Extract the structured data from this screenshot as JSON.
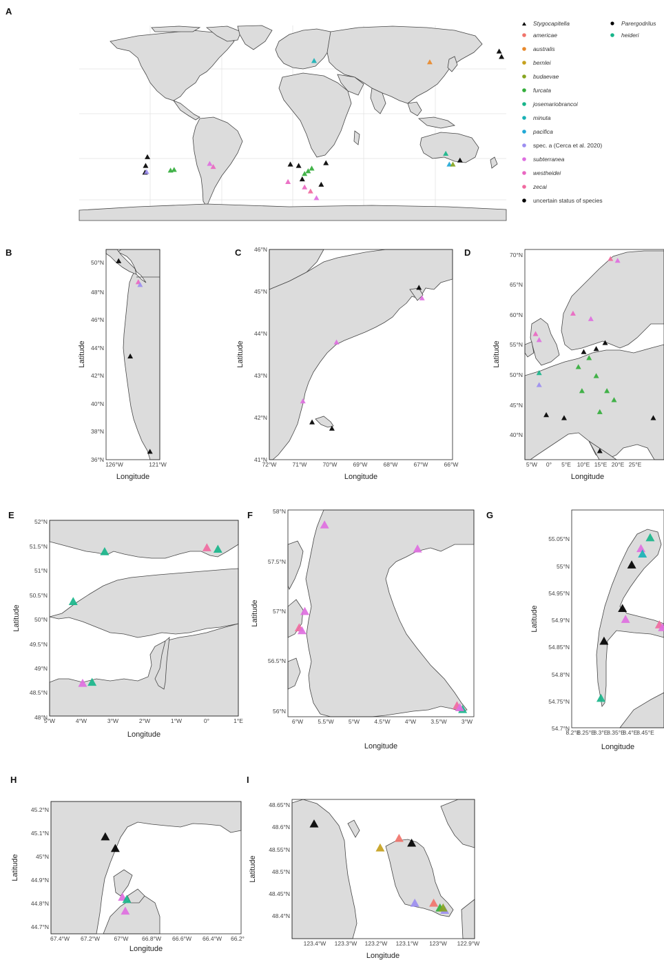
{
  "colors": {
    "americae": "#f0746b",
    "australis": "#e8892b",
    "bernlei": "#c6a11e",
    "budaevae": "#86a41f",
    "furcata": "#33ad3b",
    "josemariobrancoi": "#18b58a",
    "minuta": "#19b1b5",
    "pacifica": "#21a8d6",
    "spec_a": "#9c8ef0",
    "subterranea": "#de6fe0",
    "westheidei": "#e967c1",
    "zecai": "#f06aa0",
    "uncertain": "#000000"
  },
  "legend": {
    "stygocapitella_header": "Stygocapitella",
    "parergodrilus_header": "Parergodrilus",
    "items": [
      {
        "label": "americae",
        "color_key": "americae"
      },
      {
        "label": "australis",
        "color_key": "australis"
      },
      {
        "label": "bernlei",
        "color_key": "bernlei"
      },
      {
        "label": "budaevae",
        "color_key": "budaevae"
      },
      {
        "label": "furcata",
        "color_key": "furcata"
      },
      {
        "label": "josemariobrancoi",
        "color_key": "josemariobrancoi"
      },
      {
        "label": "minuta",
        "color_key": "minuta"
      },
      {
        "label": "pacifica",
        "color_key": "pacifica"
      },
      {
        "label": "spec. a (Cerca et al. 2020)",
        "color_key": "spec_a"
      },
      {
        "label": "subterranea",
        "color_key": "subterranea"
      },
      {
        "label": "westheidei",
        "color_key": "westheidei"
      },
      {
        "label": "zecai",
        "color_key": "zecai"
      },
      {
        "label": "uncertain status of species",
        "color_key": "uncertain"
      }
    ],
    "parergodrilus_items": [
      {
        "label": "heideri",
        "color_key": "josemariobrancoi"
      }
    ]
  },
  "panels": {
    "A": {
      "letter": "A"
    },
    "B": {
      "letter": "B",
      "xlabel": "Longitude",
      "ylabel": "Latitude",
      "xticks": [
        "126°W",
        "121°W"
      ],
      "yticks": [
        "50°N",
        "48°N",
        "46°N",
        "44°N",
        "42°N",
        "40°N",
        "38°N",
        "36°N"
      ]
    },
    "C": {
      "letter": "C",
      "xlabel": "Longitude",
      "ylabel": "Latitude",
      "xticks": [
        "72°W",
        "71°W",
        "70°W",
        "69°W",
        "68°W",
        "67°W",
        "66°W"
      ],
      "yticks": [
        "46°N",
        "45°N",
        "44°N",
        "43°N",
        "42°N",
        "41°N"
      ]
    },
    "D": {
      "letter": "D",
      "xlabel": "Longitude",
      "ylabel": "Latitude",
      "xticks": [
        "5°W",
        "0°",
        "5°E",
        "10°E",
        "15°E",
        "20°E",
        "25°E"
      ],
      "yticks": [
        "70°N",
        "65°N",
        "60°N",
        "55°N",
        "50°N",
        "45°N",
        "40°N"
      ]
    },
    "E": {
      "letter": "E",
      "xlabel": "Longitude",
      "ylabel": "Latitude",
      "xticks": [
        "5°W",
        "4°W",
        "3°W",
        "2°W",
        "1°W",
        "0°",
        "1°E"
      ],
      "yticks": [
        "52°N",
        "51.5°N",
        "51°N",
        "50.5°N",
        "50°N",
        "49.5°N",
        "49°N",
        "48.5°N",
        "48°N"
      ]
    },
    "F": {
      "letter": "F",
      "xlabel": "Longitude",
      "ylabel": "Latitude",
      "xticks": [
        "6°W",
        "5.5°W",
        "5°W",
        "4.5°W",
        "4°W",
        "3.5°W",
        "3°W"
      ],
      "yticks": [
        "58°N",
        "57.5°N",
        "57°N",
        "56.5°N",
        "56°N"
      ]
    },
    "G": {
      "letter": "G",
      "xlabel": "Longitude",
      "ylabel": "Latitude",
      "xticks": [
        "8.2°E",
        "8.25°E",
        "8.3°E",
        "8.35°E",
        "8.4°E",
        "8.45°E"
      ],
      "yticks": [
        "55.05°N",
        "55°N",
        "54.95°N",
        "54.9°N",
        "54.85°N",
        "54.8°N",
        "54.75°N",
        "54.7°N"
      ]
    },
    "H": {
      "letter": "H",
      "xlabel": "Longitude",
      "ylabel": "Latitude",
      "xticks": [
        "67.4°W",
        "67.2°W",
        "67°W",
        "66.8°W",
        "66.6°W",
        "66.4°W",
        "66.2°"
      ],
      "yticks": [
        "45.2°N",
        "45.1°N",
        "45°N",
        "44.9°N",
        "44.8°N",
        "44.7°N"
      ]
    },
    "I": {
      "letter": "I",
      "xlabel": "Longitude",
      "ylabel": "Latitude",
      "xticks": [
        "123.4°W",
        "123.3°W",
        "123.2°W",
        "123.1°W",
        "123°W",
        "122.9°W"
      ],
      "yticks": [
        "48.65°N",
        "48.6°N",
        "48.55°N",
        "48.5°N",
        "48.45°N",
        "48.4°N"
      ]
    }
  },
  "markers": {
    "A": [
      {
        "lon": -124.5,
        "lat": 49.0,
        "sp": "uncertain"
      },
      {
        "lon": -123.2,
        "lat": 48.6,
        "sp": "spec_a"
      },
      {
        "lon": -124.0,
        "lat": 44.0,
        "sp": "uncertain"
      },
      {
        "lon": -122.5,
        "lat": 37.5,
        "sp": "uncertain"
      },
      {
        "lon": -103,
        "lat": 47.5,
        "sp": "furcata"
      },
      {
        "lon": -100,
        "lat": 47,
        "sp": "furcata"
      },
      {
        "lon": -70,
        "lat": 42.5,
        "sp": "subterranea"
      },
      {
        "lon": -67,
        "lat": 44.8,
        "sp": "westheidei"
      },
      {
        "lon": -4,
        "lat": 56,
        "sp": "westheidei"
      },
      {
        "lon": 8,
        "lat": 54,
        "sp": "uncertain"
      },
      {
        "lon": 10,
        "lat": 60,
        "sp": "westheidei"
      },
      {
        "lon": 15,
        "lat": 63,
        "sp": "zecai"
      },
      {
        "lon": 20,
        "lat": 68,
        "sp": "subterranea"
      },
      {
        "lon": 13,
        "lat": 48,
        "sp": "furcata"
      },
      {
        "lon": 16,
        "lat": 46,
        "sp": "furcata"
      },
      {
        "lon": 5,
        "lat": 44,
        "sp": "uncertain"
      },
      {
        "lon": 10,
        "lat": 50,
        "sp": "furcata"
      },
      {
        "lon": -2,
        "lat": 43,
        "sp": "uncertain"
      },
      {
        "lon": 28,
        "lat": 42,
        "sp": "uncertain"
      },
      {
        "lon": 24,
        "lat": 58,
        "sp": "uncertain"
      },
      {
        "lon": 18,
        "lat": -34,
        "sp": "minuta"
      },
      {
        "lon": 115.5,
        "lat": -33,
        "sp": "australis"
      },
      {
        "lon": 132,
        "lat": 43,
        "sp": "pacifica"
      },
      {
        "lon": 135,
        "lat": 43,
        "sp": "budaevae"
      },
      {
        "lon": 141,
        "lat": 40,
        "sp": "uncertain"
      },
      {
        "lon": 129,
        "lat": 35,
        "sp": "josemariobrancoi"
      },
      {
        "lon": 174,
        "lat": -41,
        "sp": "uncertain"
      },
      {
        "lon": 176,
        "lat": -37,
        "sp": "uncertain"
      }
    ],
    "B": [
      {
        "lon": -125.4,
        "lat": 50.2,
        "sp": "uncertain"
      },
      {
        "lon": -123.2,
        "lat": 48.7,
        "sp": "westheidei"
      },
      {
        "lon": -123.0,
        "lat": 48.5,
        "sp": "spec_a"
      },
      {
        "lon": -124.1,
        "lat": 43.4,
        "sp": "uncertain"
      },
      {
        "lon": -121.9,
        "lat": 36.6,
        "sp": "uncertain"
      }
    ],
    "C": [
      {
        "lon": -67.1,
        "lat": 45.1,
        "sp": "uncertain"
      },
      {
        "lon": -67.0,
        "lat": 44.85,
        "sp": "subterranea"
      },
      {
        "lon": -69.8,
        "lat": 43.8,
        "sp": "subterranea"
      },
      {
        "lon": -70.9,
        "lat": 42.4,
        "sp": "subterranea"
      },
      {
        "lon": -70.6,
        "lat": 41.9,
        "sp": "uncertain"
      },
      {
        "lon": -69.95,
        "lat": 41.75,
        "sp": "uncertain"
      }
    ],
    "D": [
      {
        "lon": 16,
        "lat": 69.5,
        "sp": "zecai"
      },
      {
        "lon": 18,
        "lat": 69.2,
        "sp": "subterranea"
      },
      {
        "lon": 5.5,
        "lat": 60.4,
        "sp": "westheidei"
      },
      {
        "lon": 10.5,
        "lat": 59.5,
        "sp": "subterranea"
      },
      {
        "lon": -5,
        "lat": 57,
        "sp": "westheidei"
      },
      {
        "lon": -4,
        "lat": 56,
        "sp": "subterranea"
      },
      {
        "lon": 8.5,
        "lat": 54,
        "sp": "uncertain"
      },
      {
        "lon": 12,
        "lat": 54.5,
        "sp": "uncertain"
      },
      {
        "lon": 14.5,
        "lat": 55.5,
        "sp": "uncertain"
      },
      {
        "lon": -4,
        "lat": 50.5,
        "sp": "josemariobrancoi"
      },
      {
        "lon": -4,
        "lat": 48.5,
        "sp": "spec_a"
      },
      {
        "lon": 10,
        "lat": 53,
        "sp": "furcata"
      },
      {
        "lon": 12,
        "lat": 50,
        "sp": "furcata"
      },
      {
        "lon": 15,
        "lat": 47.5,
        "sp": "furcata"
      },
      {
        "lon": 17,
        "lat": 46,
        "sp": "furcata"
      },
      {
        "lon": 13,
        "lat": 44,
        "sp": "furcata"
      },
      {
        "lon": 8,
        "lat": 47.5,
        "sp": "furcata"
      },
      {
        "lon": -2,
        "lat": 43.5,
        "sp": "uncertain"
      },
      {
        "lon": 3,
        "lat": 43,
        "sp": "uncertain"
      },
      {
        "lon": 28,
        "lat": 43,
        "sp": "uncertain"
      },
      {
        "lon": 13,
        "lat": 37.5,
        "sp": "uncertain"
      },
      {
        "lon": 7,
        "lat": 51.5,
        "sp": "furcata"
      }
    ],
    "E": [
      {
        "lon": -3.25,
        "lat": 51.37,
        "sp": "josemariobrancoi"
      },
      {
        "lon": 0.0,
        "lat": 51.45,
        "sp": "zecai"
      },
      {
        "lon": 0.35,
        "lat": 51.42,
        "sp": "josemariobrancoi"
      },
      {
        "lon": -4.25,
        "lat": 50.35,
        "sp": "josemariobrancoi"
      },
      {
        "lon": -3.95,
        "lat": 48.68,
        "sp": "subterranea"
      },
      {
        "lon": -3.65,
        "lat": 48.7,
        "sp": "josemariobrancoi"
      }
    ],
    "F": [
      {
        "lon": -5.5,
        "lat": 57.85,
        "sp": "subterranea"
      },
      {
        "lon": -3.85,
        "lat": 57.6,
        "sp": "subterranea"
      },
      {
        "lon": -5.85,
        "lat": 56.95,
        "sp": "subterranea"
      },
      {
        "lon": -5.95,
        "lat": 56.78,
        "sp": "zecai"
      },
      {
        "lon": -5.9,
        "lat": 56.75,
        "sp": "subterranea"
      },
      {
        "lon": -3.15,
        "lat": 55.97,
        "sp": "zecai"
      },
      {
        "lon": -3.05,
        "lat": 55.93,
        "sp": "josemariobrancoi"
      },
      {
        "lon": -3.1,
        "lat": 55.95,
        "sp": "subterranea"
      }
    ],
    "G": [
      {
        "lon": 8.455,
        "lat": 55.05,
        "sp": "josemariobrancoi"
      },
      {
        "lon": 8.425,
        "lat": 55.03,
        "sp": "subterranea"
      },
      {
        "lon": 8.43,
        "lat": 55.02,
        "sp": "minuta"
      },
      {
        "lon": 8.395,
        "lat": 55.0,
        "sp": "uncertain"
      },
      {
        "lon": 8.365,
        "lat": 54.92,
        "sp": "uncertain"
      },
      {
        "lon": 8.375,
        "lat": 54.9,
        "sp": "subterranea"
      },
      {
        "lon": 8.485,
        "lat": 54.89,
        "sp": "zecai"
      },
      {
        "lon": 8.495,
        "lat": 54.885,
        "sp": "subterranea"
      },
      {
        "lon": 8.305,
        "lat": 54.86,
        "sp": "uncertain"
      },
      {
        "lon": 8.295,
        "lat": 54.755,
        "sp": "josemariobrancoi"
      }
    ],
    "H": [
      {
        "lon": -67.12,
        "lat": 45.12,
        "sp": "uncertain"
      },
      {
        "lon": -67.05,
        "lat": 45.07,
        "sp": "uncertain"
      },
      {
        "lon": -67.0,
        "lat": 44.86,
        "sp": "subterranea"
      },
      {
        "lon": -66.97,
        "lat": 44.85,
        "sp": "josemariobrancoi"
      },
      {
        "lon": -66.98,
        "lat": 44.8,
        "sp": "subterranea"
      }
    ],
    "I": [
      {
        "lon": -123.4,
        "lat": 48.64,
        "sp": "uncertain"
      },
      {
        "lon": -123.19,
        "lat": 48.59,
        "sp": "bernlei"
      },
      {
        "lon": -123.13,
        "lat": 48.61,
        "sp": "americae"
      },
      {
        "lon": -123.09,
        "lat": 48.6,
        "sp": "uncertain"
      },
      {
        "lon": -123.08,
        "lat": 48.475,
        "sp": "spec_a"
      },
      {
        "lon": -123.02,
        "lat": 48.475,
        "sp": "americae"
      },
      {
        "lon": -123.0,
        "lat": 48.465,
        "sp": "furcata"
      },
      {
        "lon": -122.985,
        "lat": 48.46,
        "sp": "spec_a"
      },
      {
        "lon": -122.99,
        "lat": 48.465,
        "sp": "budaevae"
      }
    ]
  }
}
